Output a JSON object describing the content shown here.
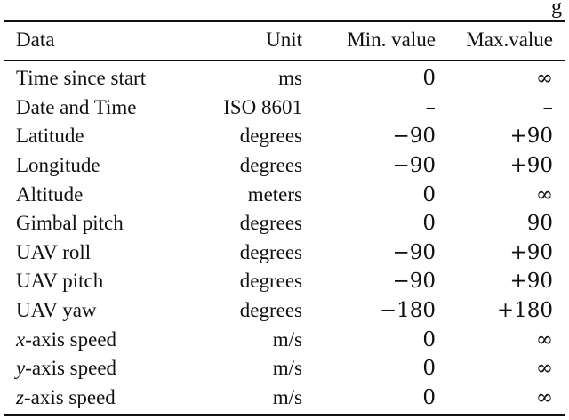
{
  "top_fragment": "g",
  "table": {
    "headers": [
      "Data",
      "Unit",
      "Min. value",
      "Max.value"
    ],
    "rows": [
      {
        "var": "",
        "name": "Time since start",
        "unit": "ms",
        "min": "0",
        "max": "∞"
      },
      {
        "var": "",
        "name": "Date and Time",
        "unit": "ISO 8601",
        "min": "–",
        "max": "–"
      },
      {
        "var": "",
        "name": "Latitude",
        "unit": "degrees",
        "min": "−90",
        "max": "+90"
      },
      {
        "var": "",
        "name": "Longitude",
        "unit": "degrees",
        "min": "−90",
        "max": "+90"
      },
      {
        "var": "",
        "name": "Altitude",
        "unit": "meters",
        "min": "0",
        "max": "∞"
      },
      {
        "var": "",
        "name": "Gimbal pitch",
        "unit": "degrees",
        "min": "0",
        "max": "90"
      },
      {
        "var": "",
        "name": "UAV roll",
        "unit": "degrees",
        "min": "−90",
        "max": "+90"
      },
      {
        "var": "",
        "name": "UAV pitch",
        "unit": "degrees",
        "min": "−90",
        "max": "+90"
      },
      {
        "var": "",
        "name": "UAV yaw",
        "unit": "degrees",
        "min": "−180",
        "max": "+180"
      },
      {
        "var": "x",
        "name": "-axis speed",
        "unit": "m/s",
        "min": "0",
        "max": "∞"
      },
      {
        "var": "y",
        "name": "-axis speed",
        "unit": "m/s",
        "min": "0",
        "max": "∞"
      },
      {
        "var": "z",
        "name": "-axis speed",
        "unit": "m/s",
        "min": "0",
        "max": "∞"
      }
    ]
  }
}
